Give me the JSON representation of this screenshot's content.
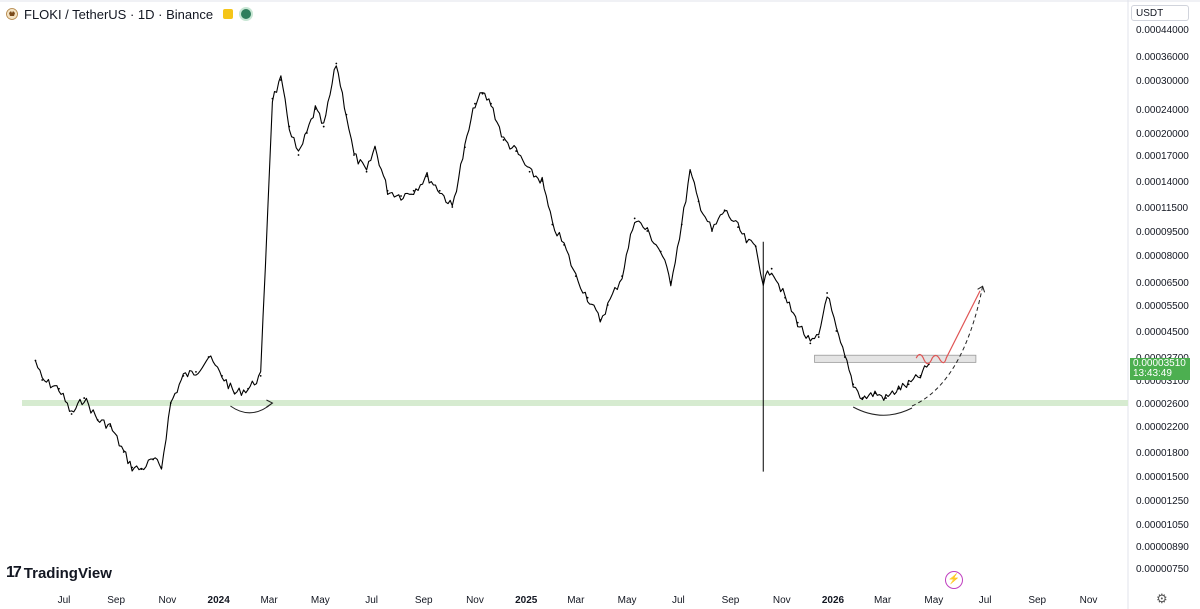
{
  "header": {
    "symbol_title": "FLOKI / TetherUS · 1D · Binance"
  },
  "price_axis": {
    "currency": "USDT",
    "labels": [
      "0.00044000",
      "0.00036000",
      "0.00030000",
      "0.00024000",
      "0.00020000",
      "0.00017000",
      "0.00014000",
      "0.00011500",
      "0.00009500",
      "0.00008000",
      "0.00006500",
      "0.00005500",
      "0.00004500",
      "0.00003700",
      "0.00003100",
      "0.00002600",
      "0.00002200",
      "0.00001800",
      "0.00001500",
      "0.00001250",
      "0.00001050",
      "0.00000890",
      "0.00000750"
    ],
    "current_price": "0.00003510",
    "countdown": "13:43:49"
  },
  "time_axis": {
    "labels": [
      "Jul",
      "Sep",
      "Nov",
      "2024",
      "Mar",
      "May",
      "Jul",
      "Sep",
      "Nov",
      "2025",
      "Mar",
      "May",
      "Jul",
      "Sep",
      "Nov",
      "2026",
      "Mar",
      "May",
      "Jul",
      "Sep",
      "Nov"
    ]
  },
  "branding": {
    "logo_text": "TradingView"
  },
  "colors": {
    "candle": "#000000",
    "support_band": "#d6ebd0",
    "resistance_band": "#e4e4e4",
    "projection_red": "#e05555",
    "price_tag": "#4caf50"
  },
  "chart_data": {
    "type": "line",
    "scale": "log",
    "ylim": [
      7.5e-06,
      0.00044
    ],
    "x": [
      "2023-05-28",
      "2023-06-05",
      "2023-06-25",
      "2023-07-10",
      "2023-07-25",
      "2023-08-10",
      "2023-08-25",
      "2023-09-10",
      "2023-09-20",
      "2023-10-01",
      "2023-10-15",
      "2023-10-25",
      "2023-11-05",
      "2023-11-20",
      "2023-12-05",
      "2023-12-20",
      "2024-01-05",
      "2024-01-20",
      "2024-02-05",
      "2024-02-20",
      "2024-03-05",
      "2024-03-15",
      "2024-03-25",
      "2024-04-05",
      "2024-04-15",
      "2024-04-25",
      "2024-05-05",
      "2024-05-20",
      "2024-06-01",
      "2024-06-10",
      "2024-06-25",
      "2024-07-05",
      "2024-07-20",
      "2024-08-05",
      "2024-08-20",
      "2024-09-05",
      "2024-09-20",
      "2024-10-05",
      "2024-10-20",
      "2024-11-01",
      "2024-11-10",
      "2024-11-20",
      "2024-12-05",
      "2024-12-20",
      "2025-01-05",
      "2025-01-20",
      "2025-02-01",
      "2025-02-15",
      "2025-03-01",
      "2025-03-15",
      "2025-03-30",
      "2025-04-08",
      "2025-04-25",
      "2025-05-10",
      "2025-05-25",
      "2025-06-10",
      "2025-06-22",
      "2025-07-05",
      "2025-07-15",
      "2025-07-25",
      "2025-08-10",
      "2025-08-25",
      "2025-09-10",
      "2025-09-20",
      "2025-10-01",
      "2025-10-10",
      "2025-10-20",
      "2025-11-05",
      "2025-11-20",
      "2025-12-05",
      "2025-12-15",
      "2025-12-25",
      "2026-01-05",
      "2026-01-15",
      "2026-01-25",
      "2026-02-05",
      "2026-02-20",
      "2026-03-05",
      "2026-03-20",
      "2026-04-01",
      "2026-04-15",
      "2026-04-25"
    ],
    "series": [
      {
        "name": "",
        "values": [
          3.6e-05,
          3.1e-05,
          2.9e-05,
          2.4e-05,
          2.7e-05,
          2.3e-05,
          2.2e-05,
          1.8e-05,
          1.6e-05,
          1.58e-05,
          1.7e-05,
          1.6e-05,
          2.6e-05,
          3.2e-05,
          3.3e-05,
          3.7e-05,
          3.2e-05,
          2.8e-05,
          2.9e-05,
          3.2e-05,
          0.00026,
          0.0003,
          0.00021,
          0.00017,
          0.0002,
          0.00024,
          0.00021,
          0.00034,
          0.00023,
          0.00017,
          0.00015,
          0.00018,
          0.00013,
          0.000125,
          0.00013,
          0.000145,
          0.00013,
          0.000115,
          0.00018,
          0.00025,
          0.00027,
          0.00025,
          0.00019,
          0.000175,
          0.00015,
          0.00014,
          0.0001,
          8.6e-05,
          6.8e-05,
          5.8e-05,
          4.9e-05,
          5.5e-05,
          6.8e-05,
          0.000105,
          9.5e-05,
          8.2e-05,
          6.5e-05,
          0.0001,
          0.00015,
          0.00012,
          9.5e-05,
          0.000112,
          9.8e-05,
          8.8e-05,
          8.5e-05,
          6.5e-05,
          7.2e-05,
          5.8e-05,
          4.8e-05,
          4.1e-05,
          4.3e-05,
          6e-05,
          4.5e-05,
          3.7e-05,
          3e-05,
          2.7e-05,
          2.8e-05,
          2.7e-05,
          2.9e-05,
          3e-05,
          3.2e-05,
          3.5e-05
        ]
      }
    ],
    "spike_low": {
      "x": "2025-10-10",
      "value": 1.55e-05
    },
    "support_level": 2.6e-05,
    "resistance_zone": [
      3.55e-05,
      3.75e-05
    ],
    "legend": "none",
    "grid": false
  }
}
